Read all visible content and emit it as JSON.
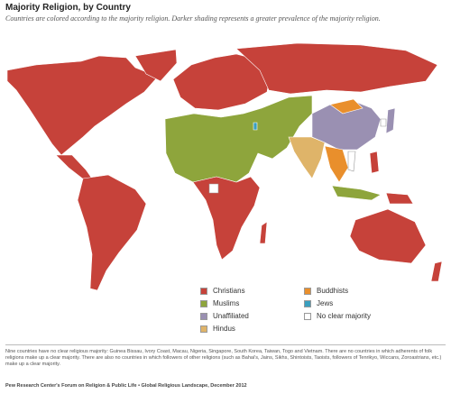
{
  "header": {
    "title": "Majority Religion, by Country",
    "subtitle": "Countries are colored according to the majority religion. Darker shading represents a greater prevalence of the majority religion."
  },
  "legend": {
    "items": [
      {
        "label": "Christians",
        "color": "#c6423a"
      },
      {
        "label": "Muslims",
        "color": "#8ea53c"
      },
      {
        "label": "Unaffiliated",
        "color": "#9a90b2"
      },
      {
        "label": "Hindus",
        "color": "#dfb469"
      },
      {
        "label": "Buddhists",
        "color": "#e98f2c"
      },
      {
        "label": "Jews",
        "color": "#3a9fbf"
      },
      {
        "label": "No clear majority",
        "color": "#ffffff"
      }
    ]
  },
  "note": "Nine countries have no clear religious majority: Guinea Bissau, Ivory Coast, Macau, Nigeria, Singapore, South Korea, Taiwan, Togo and Vietnam. There are no countries in which adherents of folk religions make up a clear majority. There are also no countries in which followers of other religions (such as Bahai's, Jains, Sikhs, Shintoists, Taoists, followers of Tenrikyo, Wiccans, Zoroastrians, etc.) make up a clear majority.",
  "source": "Pew Research Center's Forum on Religion & Public Life • Global Religious Landscape, December 2012"
}
